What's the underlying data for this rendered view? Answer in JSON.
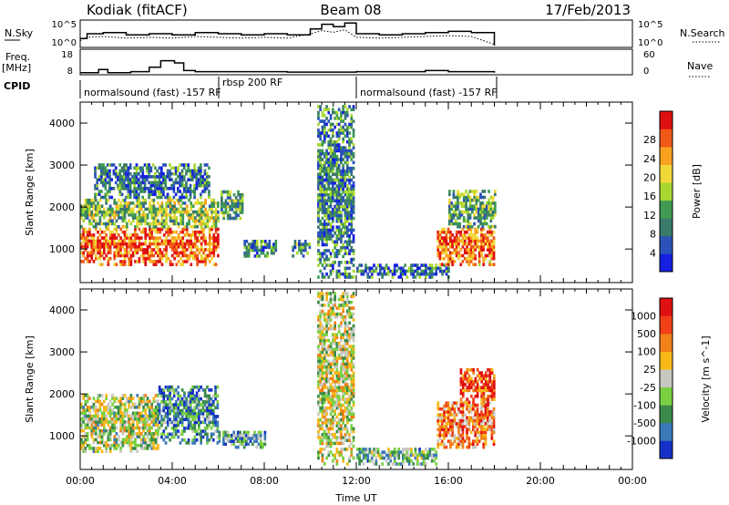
{
  "header": {
    "station": "Kodiak (fitACF)",
    "beam": "Beam 08",
    "date": "17/Feb/2013"
  },
  "top_panels": {
    "nsky_label": "N.Sky",
    "nsearch_label": "N.Search",
    "nsky_ticks": [
      "10^5",
      "10^0"
    ],
    "freq_label_line1": "Freq.",
    "freq_label_line2": "[MHz]",
    "freq_ticks_left": [
      "18",
      "8"
    ],
    "freq_ticks_right": [
      "60",
      "0"
    ],
    "nave_label": "Nave",
    "cpid_label": "CPID",
    "cpid_segments": [
      {
        "label": "normalsound (fast) -157 RF",
        "start_h": 0,
        "end_h": 6
      },
      {
        "label": "rbsp 200 RF",
        "start_h": 6,
        "end_h": 12
      },
      {
        "label": "normalsound (fast) -157 RF",
        "start_h": 12,
        "end_h": 24
      }
    ],
    "nsky_steps": [
      [
        0,
        0.3
      ],
      [
        0.3,
        0.5
      ],
      [
        1,
        0.55
      ],
      [
        2,
        0.45
      ],
      [
        3,
        0.5
      ],
      [
        4,
        0.45
      ],
      [
        5,
        0.55
      ],
      [
        6,
        0.5
      ],
      [
        7,
        0.45
      ],
      [
        8,
        0.5
      ],
      [
        9,
        0.45
      ],
      [
        10,
        0.7
      ],
      [
        10.5,
        0.9
      ],
      [
        11,
        0.8
      ],
      [
        11.5,
        0.95
      ],
      [
        12,
        0.5
      ],
      [
        13,
        0.45
      ],
      [
        14,
        0.5
      ],
      [
        15,
        0.55
      ],
      [
        16,
        0.6
      ],
      [
        17,
        0.55
      ],
      [
        18,
        0
      ]
    ],
    "freq_steps": [
      [
        0,
        8.5
      ],
      [
        0.8,
        10
      ],
      [
        1.2,
        8.5
      ],
      [
        2.2,
        9
      ],
      [
        3,
        11
      ],
      [
        3.5,
        14
      ],
      [
        4.1,
        13
      ],
      [
        4.5,
        9.5
      ],
      [
        5,
        9
      ],
      [
        6,
        9
      ],
      [
        9,
        8.8
      ],
      [
        12,
        9
      ],
      [
        15,
        9.5
      ],
      [
        16,
        9
      ],
      [
        18,
        8.5
      ]
    ]
  },
  "chart_data": [
    {
      "type": "heatmap",
      "name": "power",
      "ylabel": "Slant Range [km]",
      "yticks": [
        1000,
        2000,
        3000,
        4000
      ],
      "ylim": [
        200,
        4500
      ],
      "xlim": [
        0,
        24
      ],
      "xticks": [
        "00:00",
        "04:00",
        "08:00",
        "12:00",
        "16:00",
        "20:00",
        "00:00"
      ],
      "colorbar_label": "Power [dB]",
      "colorbar_ticks": [
        4,
        8,
        12,
        16,
        20,
        24,
        28
      ],
      "colorbar_colors": [
        "#1520e0",
        "#2a52b8",
        "#3a7a6a",
        "#3f9a52",
        "#a8d830",
        "#f0d838",
        "#f8a020",
        "#f05818",
        "#e01010"
      ],
      "clusters": [
        {
          "t0": 0.0,
          "t1": 6.0,
          "r0": 600,
          "r1": 1500,
          "level": 0.82
        },
        {
          "t0": 0.0,
          "t1": 6.0,
          "r0": 1500,
          "r1": 2200,
          "level": 0.45
        },
        {
          "t0": 0.6,
          "t1": 5.6,
          "r0": 2200,
          "r1": 3000,
          "level": 0.25
        },
        {
          "t0": 6.1,
          "t1": 7.0,
          "r0": 1700,
          "r1": 2400,
          "level": 0.35
        },
        {
          "t0": 7.1,
          "t1": 8.5,
          "r0": 800,
          "r1": 1200,
          "level": 0.3
        },
        {
          "t0": 9.2,
          "t1": 10.0,
          "r0": 800,
          "r1": 1200,
          "level": 0.35
        },
        {
          "t0": 10.3,
          "t1": 11.9,
          "r0": 300,
          "r1": 4400,
          "level": 0.3
        },
        {
          "t0": 12.0,
          "t1": 16.0,
          "r0": 300,
          "r1": 600,
          "level": 0.25
        },
        {
          "t0": 15.5,
          "t1": 18.0,
          "r0": 600,
          "r1": 1500,
          "level": 0.8
        },
        {
          "t0": 16.0,
          "t1": 18.0,
          "r0": 1500,
          "r1": 2400,
          "level": 0.4
        }
      ]
    },
    {
      "type": "heatmap",
      "name": "velocity",
      "ylabel": "Slant Range [km]",
      "xlabel": "Time UT",
      "yticks": [
        1000,
        2000,
        3000,
        4000
      ],
      "ylim": [
        200,
        4500
      ],
      "xlim": [
        0,
        24
      ],
      "xticks": [
        "00:00",
        "04:00",
        "08:00",
        "12:00",
        "16:00",
        "20:00",
        "00:00"
      ],
      "colorbar_label": "Velocity [m s^-1]",
      "colorbar_ticks": [
        1000,
        500,
        100,
        25,
        -25,
        -100,
        -500,
        -1000
      ],
      "colorbar_colors": [
        "#1530c8",
        "#3a78b8",
        "#3a8a4a",
        "#78d040",
        "#c8c8c0",
        "#f8b818",
        "#f08018",
        "#f04018",
        "#e01010"
      ],
      "clusters": [
        {
          "t0": 0.0,
          "t1": 3.4,
          "r0": 600,
          "r1": 2000,
          "level": 0.45
        },
        {
          "t0": 3.4,
          "t1": 6.0,
          "r0": 800,
          "r1": 2200,
          "level": 0.25
        },
        {
          "t0": 6.0,
          "t1": 8.0,
          "r0": 700,
          "r1": 1100,
          "level": 0.3
        },
        {
          "t0": 10.3,
          "t1": 11.9,
          "r0": 300,
          "r1": 4400,
          "level": 0.5
        },
        {
          "t0": 12.0,
          "t1": 15.5,
          "r0": 300,
          "r1": 700,
          "level": 0.35
        },
        {
          "t0": 15.5,
          "t1": 18.0,
          "r0": 700,
          "r1": 1800,
          "level": 0.72
        },
        {
          "t0": 16.5,
          "t1": 18.0,
          "r0": 1700,
          "r1": 2600,
          "level": 0.85
        }
      ]
    }
  ]
}
